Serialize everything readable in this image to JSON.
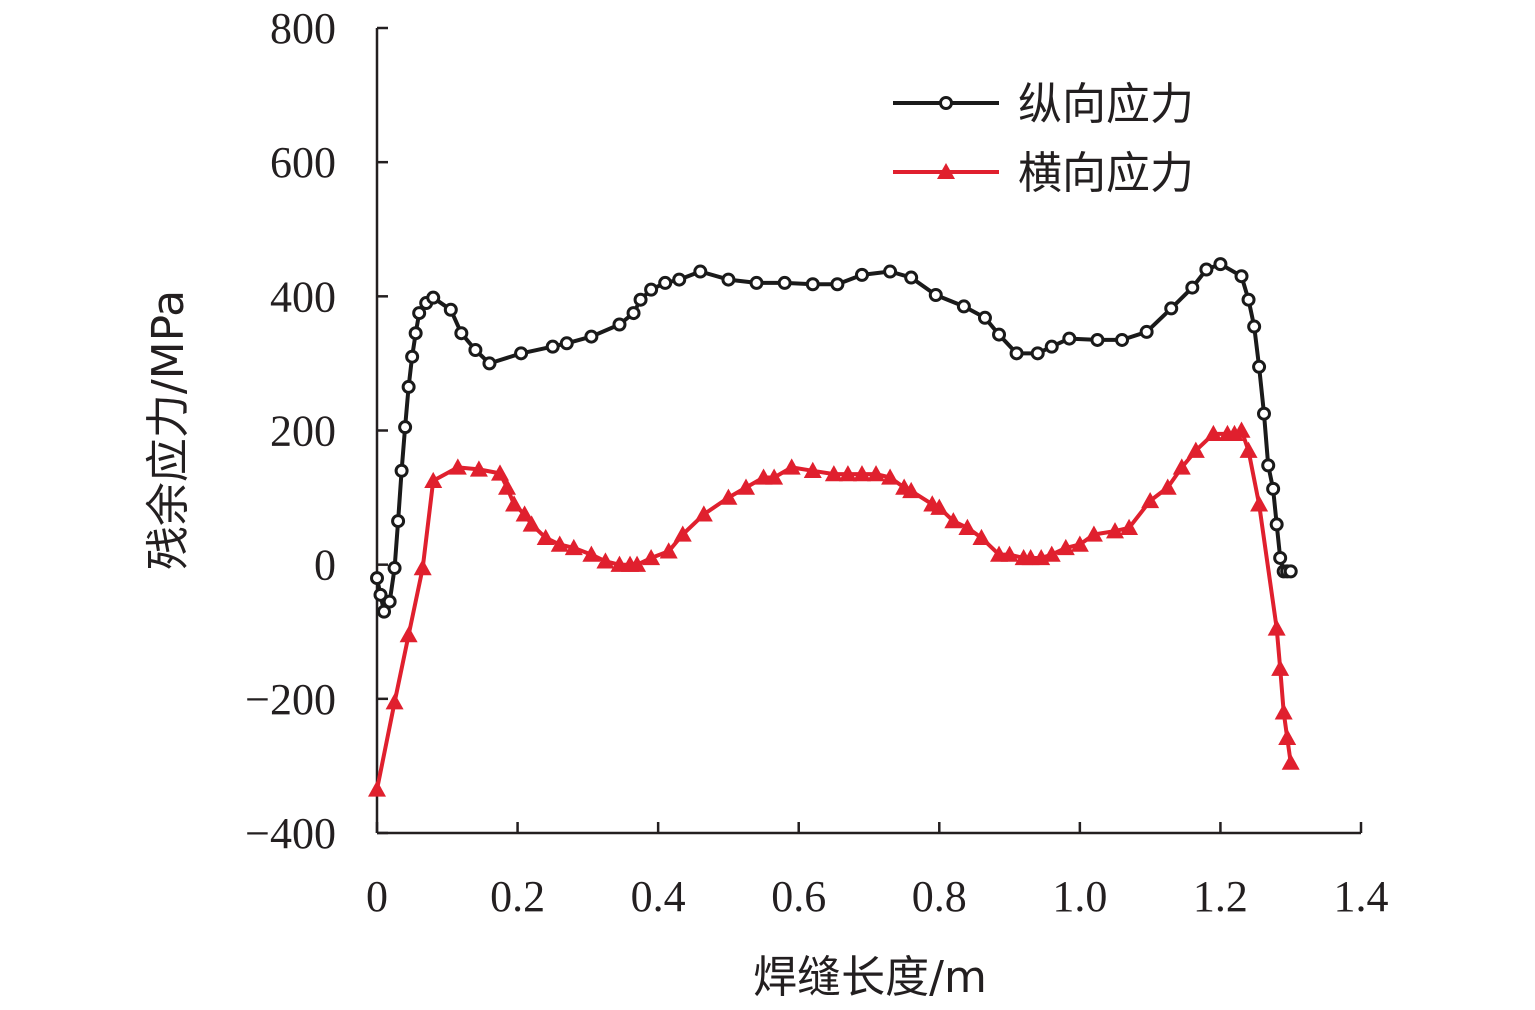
{
  "chart_data": {
    "type": "line",
    "xlabel": "焊缝长度/m",
    "ylabel": "残余应力/MPa",
    "xlim": [
      0,
      1.4
    ],
    "ylim": [
      -400,
      800
    ],
    "xticks": [
      "0",
      "0.2",
      "0.4",
      "0.6",
      "0.8",
      "1.0",
      "1.2",
      "1.4"
    ],
    "yticks": [
      "800",
      "600",
      "400",
      "200",
      "0",
      "−200",
      "−400"
    ],
    "xtick_values": [
      0,
      0.2,
      0.4,
      0.6,
      0.8,
      1.0,
      1.2,
      1.4
    ],
    "ytick_values": [
      800,
      600,
      400,
      200,
      0,
      -200,
      -400
    ],
    "grid": false,
    "legend_position": "top-right",
    "series": [
      {
        "name": "纵向应力",
        "color": "#1a1a1a",
        "marker": "circle",
        "x": [
          0.0,
          0.005,
          0.01,
          0.018,
          0.025,
          0.03,
          0.035,
          0.04,
          0.045,
          0.05,
          0.055,
          0.06,
          0.07,
          0.08,
          0.105,
          0.12,
          0.14,
          0.16,
          0.205,
          0.25,
          0.27,
          0.305,
          0.345,
          0.365,
          0.375,
          0.39,
          0.41,
          0.43,
          0.46,
          0.5,
          0.54,
          0.58,
          0.62,
          0.655,
          0.69,
          0.73,
          0.76,
          0.795,
          0.835,
          0.865,
          0.885,
          0.91,
          0.94,
          0.96,
          0.985,
          1.025,
          1.06,
          1.095,
          1.13,
          1.16,
          1.18,
          1.2,
          1.23,
          1.24,
          1.248,
          1.255,
          1.262,
          1.268,
          1.275,
          1.28,
          1.285,
          1.29,
          1.295,
          1.3
        ],
        "values": [
          -20,
          -45,
          -70,
          -55,
          -5,
          65,
          140,
          205,
          265,
          310,
          345,
          375,
          390,
          398,
          380,
          345,
          320,
          300,
          315,
          325,
          330,
          340,
          358,
          375,
          395,
          410,
          420,
          425,
          437,
          425,
          420,
          420,
          418,
          418,
          432,
          437,
          428,
          402,
          385,
          368,
          343,
          315,
          315,
          325,
          337,
          335,
          335,
          347,
          382,
          413,
          440,
          448,
          430,
          395,
          355,
          295,
          225,
          148,
          113,
          60,
          10,
          -10,
          -10,
          -10
        ]
      },
      {
        "name": "横向应力",
        "color": "#e0202e",
        "marker": "triangle",
        "x": [
          0.0,
          0.025,
          0.045,
          0.065,
          0.08,
          0.115,
          0.145,
          0.175,
          0.185,
          0.195,
          0.21,
          0.22,
          0.24,
          0.26,
          0.28,
          0.305,
          0.325,
          0.345,
          0.36,
          0.37,
          0.39,
          0.415,
          0.435,
          0.465,
          0.5,
          0.525,
          0.55,
          0.565,
          0.59,
          0.62,
          0.65,
          0.67,
          0.69,
          0.71,
          0.73,
          0.75,
          0.76,
          0.79,
          0.8,
          0.82,
          0.84,
          0.86,
          0.885,
          0.9,
          0.92,
          0.93,
          0.945,
          0.96,
          0.98,
          1.0,
          1.02,
          1.05,
          1.07,
          1.1,
          1.125,
          1.145,
          1.165,
          1.19,
          1.21,
          1.22,
          1.23,
          1.24,
          1.255,
          1.28,
          1.285,
          1.29,
          1.295,
          1.3
        ],
        "values": [
          -335,
          -205,
          -105,
          -5,
          125,
          145,
          142,
          136,
          115,
          90,
          75,
          60,
          40,
          30,
          25,
          15,
          5,
          0,
          0,
          0,
          10,
          20,
          45,
          75,
          100,
          115,
          130,
          130,
          145,
          140,
          135,
          135,
          135,
          135,
          130,
          115,
          110,
          90,
          85,
          65,
          55,
          40,
          15,
          15,
          10,
          10,
          10,
          15,
          25,
          30,
          45,
          50,
          55,
          95,
          115,
          145,
          170,
          195,
          195,
          195,
          200,
          170,
          90,
          -95,
          -155,
          -220,
          -258,
          -295
        ]
      }
    ]
  }
}
